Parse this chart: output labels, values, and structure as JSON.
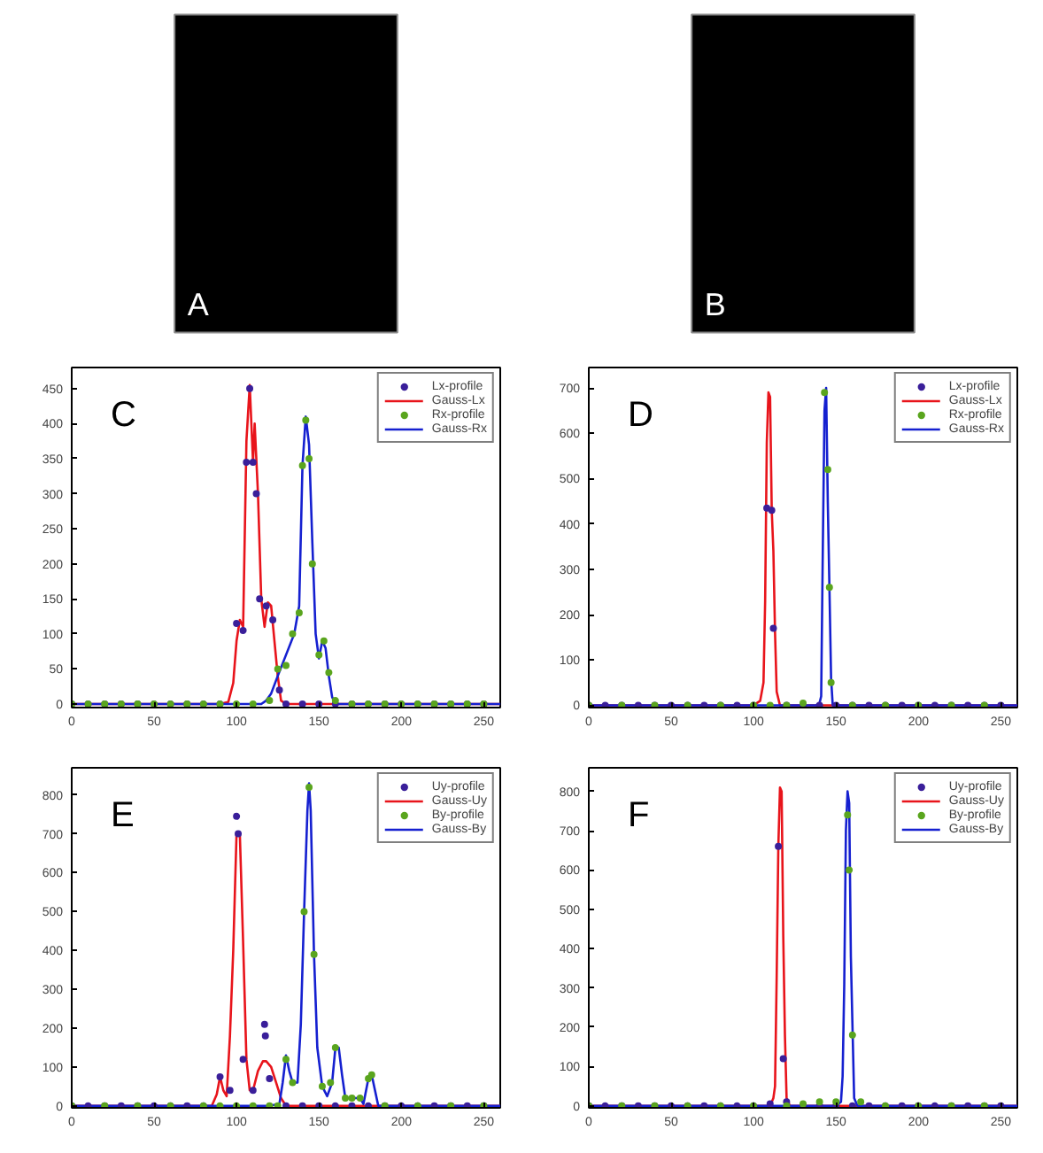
{
  "chart_data": [
    {
      "type": "other",
      "title": "A"
    },
    {
      "type": "other",
      "title": "B"
    },
    {
      "type": "line",
      "title": "C",
      "xlim": [
        0,
        260
      ],
      "ylim": [
        -5,
        480
      ],
      "xticks": [
        0,
        50,
        100,
        150,
        200,
        250
      ],
      "yticks": [
        0,
        50,
        100,
        150,
        200,
        250,
        300,
        350,
        400,
        450
      ],
      "legend": "top right",
      "grid": false,
      "series": [
        {
          "name": "Lx-profile",
          "type": "scatter",
          "marker": "circle",
          "color": "#3a1f9a",
          "x": [
            0,
            10,
            20,
            30,
            40,
            50,
            60,
            70,
            80,
            90,
            100,
            104,
            106,
            108,
            110,
            112,
            114,
            118,
            122,
            126,
            130,
            140,
            150,
            160,
            170,
            180,
            190,
            200,
            210,
            220,
            230,
            240,
            250
          ],
          "values": [
            0,
            0,
            0,
            0,
            0,
            0,
            0,
            0,
            0,
            0,
            115,
            105,
            345,
            450,
            345,
            300,
            150,
            140,
            120,
            20,
            0,
            0,
            0,
            0,
            0,
            0,
            0,
            0,
            0,
            0,
            0,
            0,
            0
          ]
        },
        {
          "name": "Gauss-Lx",
          "type": "line",
          "color": "#e8141b",
          "x": [
            0,
            90,
            95,
            98,
            100,
            102,
            104,
            106,
            108,
            110,
            111,
            113,
            115,
            117,
            119,
            121,
            123,
            125,
            127,
            130,
            260
          ],
          "values": [
            0,
            0,
            3,
            30,
            90,
            120,
            110,
            375,
            455,
            345,
            400,
            300,
            150,
            110,
            145,
            140,
            90,
            40,
            5,
            0,
            0
          ]
        },
        {
          "name": "Rx-profile",
          "type": "scatter",
          "marker": "circle",
          "color": "#5aa51e",
          "x": [
            0,
            10,
            20,
            30,
            40,
            50,
            60,
            70,
            80,
            90,
            100,
            110,
            120,
            125,
            130,
            134,
            138,
            140,
            142,
            144,
            146,
            150,
            153,
            156,
            160,
            170,
            180,
            190,
            200,
            210,
            220,
            230,
            240,
            250
          ],
          "values": [
            0,
            0,
            0,
            0,
            0,
            0,
            0,
            0,
            0,
            0,
            0,
            0,
            5,
            50,
            55,
            100,
            130,
            340,
            405,
            350,
            200,
            70,
            90,
            45,
            5,
            0,
            0,
            0,
            0,
            0,
            0,
            0,
            0,
            0
          ]
        },
        {
          "name": "Gauss-Rx",
          "type": "line",
          "color": "#1520d0",
          "x": [
            0,
            115,
            118,
            121,
            125,
            130,
            135,
            138,
            140,
            142,
            144,
            146,
            148,
            150,
            152,
            154,
            156,
            158,
            160,
            260
          ],
          "values": [
            0,
            0,
            5,
            15,
            40,
            70,
            100,
            140,
            340,
            410,
            370,
            230,
            100,
            65,
            90,
            80,
            40,
            10,
            0,
            0
          ]
        }
      ]
    },
    {
      "type": "line",
      "title": "D",
      "xlim": [
        0,
        260
      ],
      "ylim": [
        -5,
        745
      ],
      "xticks": [
        0,
        50,
        100,
        150,
        200,
        250
      ],
      "yticks": [
        0,
        100,
        200,
        300,
        400,
        500,
        600,
        700
      ],
      "legend": "top right",
      "grid": false,
      "series": [
        {
          "name": "Lx-profile",
          "type": "scatter",
          "marker": "circle",
          "color": "#3a1f9a",
          "x": [
            0,
            10,
            20,
            30,
            40,
            50,
            60,
            70,
            80,
            90,
            100,
            108,
            111,
            112,
            120,
            130,
            140,
            150,
            160,
            170,
            180,
            190,
            200,
            210,
            220,
            230,
            240,
            250
          ],
          "values": [
            0,
            0,
            0,
            0,
            0,
            0,
            0,
            0,
            0,
            0,
            0,
            435,
            430,
            170,
            0,
            0,
            0,
            0,
            0,
            0,
            0,
            0,
            0,
            0,
            0,
            0,
            0,
            0
          ]
        },
        {
          "name": "Gauss-Lx",
          "type": "line",
          "color": "#e8141b",
          "x": [
            0,
            100,
            104,
            106,
            107,
            108,
            109,
            110,
            111,
            112,
            113,
            114,
            116,
            260
          ],
          "values": [
            0,
            0,
            10,
            50,
            230,
            580,
            690,
            680,
            430,
            340,
            160,
            30,
            0,
            0
          ]
        },
        {
          "name": "Rx-profile",
          "type": "scatter",
          "marker": "circle",
          "color": "#5aa51e",
          "x": [
            0,
            20,
            40,
            60,
            80,
            100,
            110,
            120,
            130,
            143,
            145,
            146,
            147,
            160,
            180,
            200,
            220,
            240
          ],
          "values": [
            0,
            0,
            0,
            0,
            0,
            0,
            0,
            0,
            5,
            690,
            520,
            260,
            50,
            0,
            0,
            0,
            0,
            0
          ]
        },
        {
          "name": "Gauss-Rx",
          "type": "line",
          "color": "#1520d0",
          "x": [
            0,
            138,
            140,
            141,
            142,
            143,
            144,
            145,
            146,
            147,
            148,
            260
          ],
          "values": [
            0,
            0,
            5,
            20,
            350,
            650,
            700,
            450,
            260,
            60,
            0,
            0
          ]
        }
      ]
    },
    {
      "type": "line",
      "title": "E",
      "xlim": [
        0,
        260
      ],
      "ylim": [
        -5,
        870
      ],
      "xticks": [
        0,
        50,
        100,
        150,
        200,
        250
      ],
      "yticks": [
        0,
        100,
        200,
        300,
        400,
        500,
        600,
        700,
        800
      ],
      "legend": "top right",
      "grid": false,
      "series": [
        {
          "name": "Uy-profile",
          "type": "scatter",
          "marker": "circle",
          "color": "#3a1f9a",
          "x": [
            0,
            10,
            20,
            30,
            40,
            50,
            60,
            70,
            80,
            90,
            96,
            100,
            101,
            104,
            110,
            117,
            117.5,
            120,
            130,
            140,
            150,
            160,
            170,
            180,
            190,
            200,
            210,
            220,
            230,
            240,
            250
          ],
          "values": [
            0,
            0,
            0,
            0,
            0,
            0,
            0,
            0,
            0,
            75,
            40,
            745,
            700,
            120,
            40,
            210,
            180,
            70,
            0,
            0,
            0,
            0,
            0,
            0,
            0,
            0,
            0,
            0,
            0,
            0,
            0
          ]
        },
        {
          "name": "Gauss-Uy",
          "type": "line",
          "color": "#e8141b",
          "x": [
            0,
            85,
            88,
            90,
            92,
            94,
            96,
            98,
            100,
            102,
            104,
            106,
            108,
            110,
            113,
            116,
            118,
            121,
            124,
            127,
            130,
            260
          ],
          "values": [
            0,
            0,
            30,
            75,
            40,
            25,
            180,
            400,
            700,
            700,
            420,
            120,
            40,
            40,
            90,
            115,
            115,
            100,
            60,
            20,
            0,
            0
          ]
        },
        {
          "name": "By-profile",
          "type": "scatter",
          "marker": "circle",
          "color": "#5aa51e",
          "x": [
            0,
            20,
            40,
            60,
            80,
            90,
            100,
            110,
            120,
            125,
            130,
            134,
            141,
            144,
            147,
            152,
            157,
            160,
            166,
            170,
            175,
            180,
            182,
            190,
            210,
            230,
            250
          ],
          "values": [
            0,
            0,
            0,
            0,
            0,
            0,
            0,
            0,
            0,
            0,
            120,
            60,
            500,
            820,
            390,
            50,
            60,
            150,
            20,
            20,
            20,
            70,
            80,
            0,
            0,
            0,
            0
          ]
        },
        {
          "name": "Gauss-By",
          "type": "line",
          "color": "#1520d0",
          "x": [
            0,
            120,
            126,
            128,
            130,
            132,
            134,
            137,
            139,
            141,
            143,
            144,
            145,
            147,
            149,
            152,
            155,
            158,
            160,
            162,
            164,
            166,
            170,
            175,
            177,
            180,
            182,
            184,
            186,
            260
          ],
          "values": [
            0,
            0,
            5,
            60,
            130,
            90,
            60,
            60,
            210,
            500,
            760,
            830,
            760,
            390,
            150,
            50,
            25,
            60,
            150,
            150,
            80,
            20,
            20,
            20,
            5,
            70,
            80,
            40,
            0,
            0
          ]
        }
      ]
    },
    {
      "type": "line",
      "title": "F",
      "xlim": [
        0,
        260
      ],
      "ylim": [
        -5,
        860
      ],
      "xticks": [
        0,
        50,
        100,
        150,
        200,
        250
      ],
      "yticks": [
        0,
        100,
        200,
        300,
        400,
        500,
        600,
        700,
        800
      ],
      "legend": "top right",
      "grid": false,
      "series": [
        {
          "name": "Uy-profile",
          "type": "scatter",
          "marker": "circle",
          "color": "#3a1f9a",
          "x": [
            0,
            10,
            20,
            30,
            40,
            50,
            60,
            70,
            80,
            90,
            100,
            110,
            115,
            118,
            120,
            130,
            140,
            150,
            160,
            170,
            180,
            190,
            200,
            210,
            220,
            230,
            240,
            250
          ],
          "values": [
            0,
            0,
            0,
            0,
            0,
            0,
            0,
            0,
            0,
            0,
            0,
            5,
            660,
            120,
            10,
            0,
            0,
            0,
            0,
            0,
            0,
            0,
            0,
            0,
            0,
            0,
            0,
            0
          ]
        },
        {
          "name": "Gauss-Uy",
          "type": "line",
          "color": "#e8141b",
          "x": [
            0,
            110,
            112,
            113,
            114,
            115,
            116,
            117,
            118,
            119,
            120,
            122,
            260
          ],
          "values": [
            0,
            0,
            20,
            50,
            330,
            660,
            810,
            800,
            430,
            180,
            20,
            0,
            0
          ]
        },
        {
          "name": "By-profile",
          "type": "scatter",
          "marker": "circle",
          "color": "#5aa51e",
          "x": [
            0,
            20,
            40,
            60,
            80,
            100,
            120,
            130,
            140,
            150,
            157,
            158,
            160,
            165,
            180,
            200,
            220,
            240
          ],
          "values": [
            0,
            0,
            0,
            0,
            0,
            0,
            0,
            5,
            10,
            10,
            740,
            600,
            180,
            10,
            0,
            0,
            0,
            0
          ]
        },
        {
          "name": "Gauss-By",
          "type": "line",
          "color": "#1520d0",
          "x": [
            0,
            150,
            153,
            154,
            155,
            156,
            157,
            158,
            159,
            160,
            161,
            163,
            260
          ],
          "values": [
            0,
            0,
            10,
            75,
            310,
            700,
            800,
            770,
            380,
            200,
            20,
            0,
            0
          ]
        }
      ]
    }
  ]
}
